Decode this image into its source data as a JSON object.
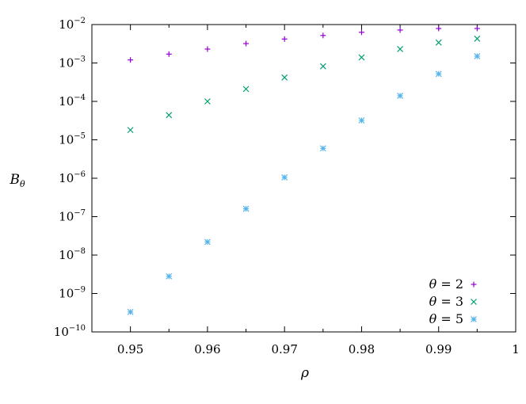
{
  "chart_data": {
    "type": "scatter",
    "xlabel": "ρ",
    "ylabel": "B_θ",
    "xlim": [
      0.945,
      1.0
    ],
    "ylim": [
      1e-10,
      0.01
    ],
    "yscale": "log",
    "grid": false,
    "legend_position": "bottom-right",
    "x_ticks": [
      {
        "value": 0.95,
        "label": "0.95"
      },
      {
        "value": 0.96,
        "label": "0.96"
      },
      {
        "value": 0.97,
        "label": "0.97"
      },
      {
        "value": 0.98,
        "label": "0.98"
      },
      {
        "value": 0.99,
        "label": "0.99"
      },
      {
        "value": 1.0,
        "label": "1"
      }
    ],
    "y_ticks": [
      {
        "value": 1e-10,
        "base": "10",
        "exp": "−10"
      },
      {
        "value": 1e-09,
        "base": "10",
        "exp": "−9"
      },
      {
        "value": 1e-08,
        "base": "10",
        "exp": "−8"
      },
      {
        "value": 1e-07,
        "base": "10",
        "exp": "−7"
      },
      {
        "value": 1e-06,
        "base": "10",
        "exp": "−6"
      },
      {
        "value": 1e-05,
        "base": "10",
        "exp": "−5"
      },
      {
        "value": 0.0001,
        "base": "10",
        "exp": "−4"
      },
      {
        "value": 0.001,
        "base": "10",
        "exp": "−3"
      },
      {
        "value": 0.01,
        "base": "10",
        "exp": "−2"
      }
    ],
    "x": [
      0.95,
      0.955,
      0.96,
      0.965,
      0.97,
      0.975,
      0.98,
      0.985,
      0.99,
      0.995
    ],
    "series": [
      {
        "name": "θ = 2",
        "marker": "plus",
        "color": "#9400d3",
        "values": [
          0.0012,
          0.0017,
          0.0023,
          0.0032,
          0.0042,
          0.0052,
          0.0063,
          0.0072,
          0.0079,
          0.0079
        ]
      },
      {
        "name": "θ = 3",
        "marker": "cross",
        "color": "#009e73",
        "values": [
          1.8e-05,
          4.4e-05,
          0.0001,
          0.00021,
          0.00042,
          0.00082,
          0.0014,
          0.0023,
          0.0034,
          0.0043
        ]
      },
      {
        "name": "θ = 5",
        "marker": "star",
        "color": "#56b4e9",
        "values": [
          3.3e-10,
          2.8e-09,
          2.2e-08,
          1.6e-07,
          1.05e-06,
          6e-06,
          3.2e-05,
          0.00014,
          0.00052,
          0.0015
        ]
      }
    ]
  }
}
